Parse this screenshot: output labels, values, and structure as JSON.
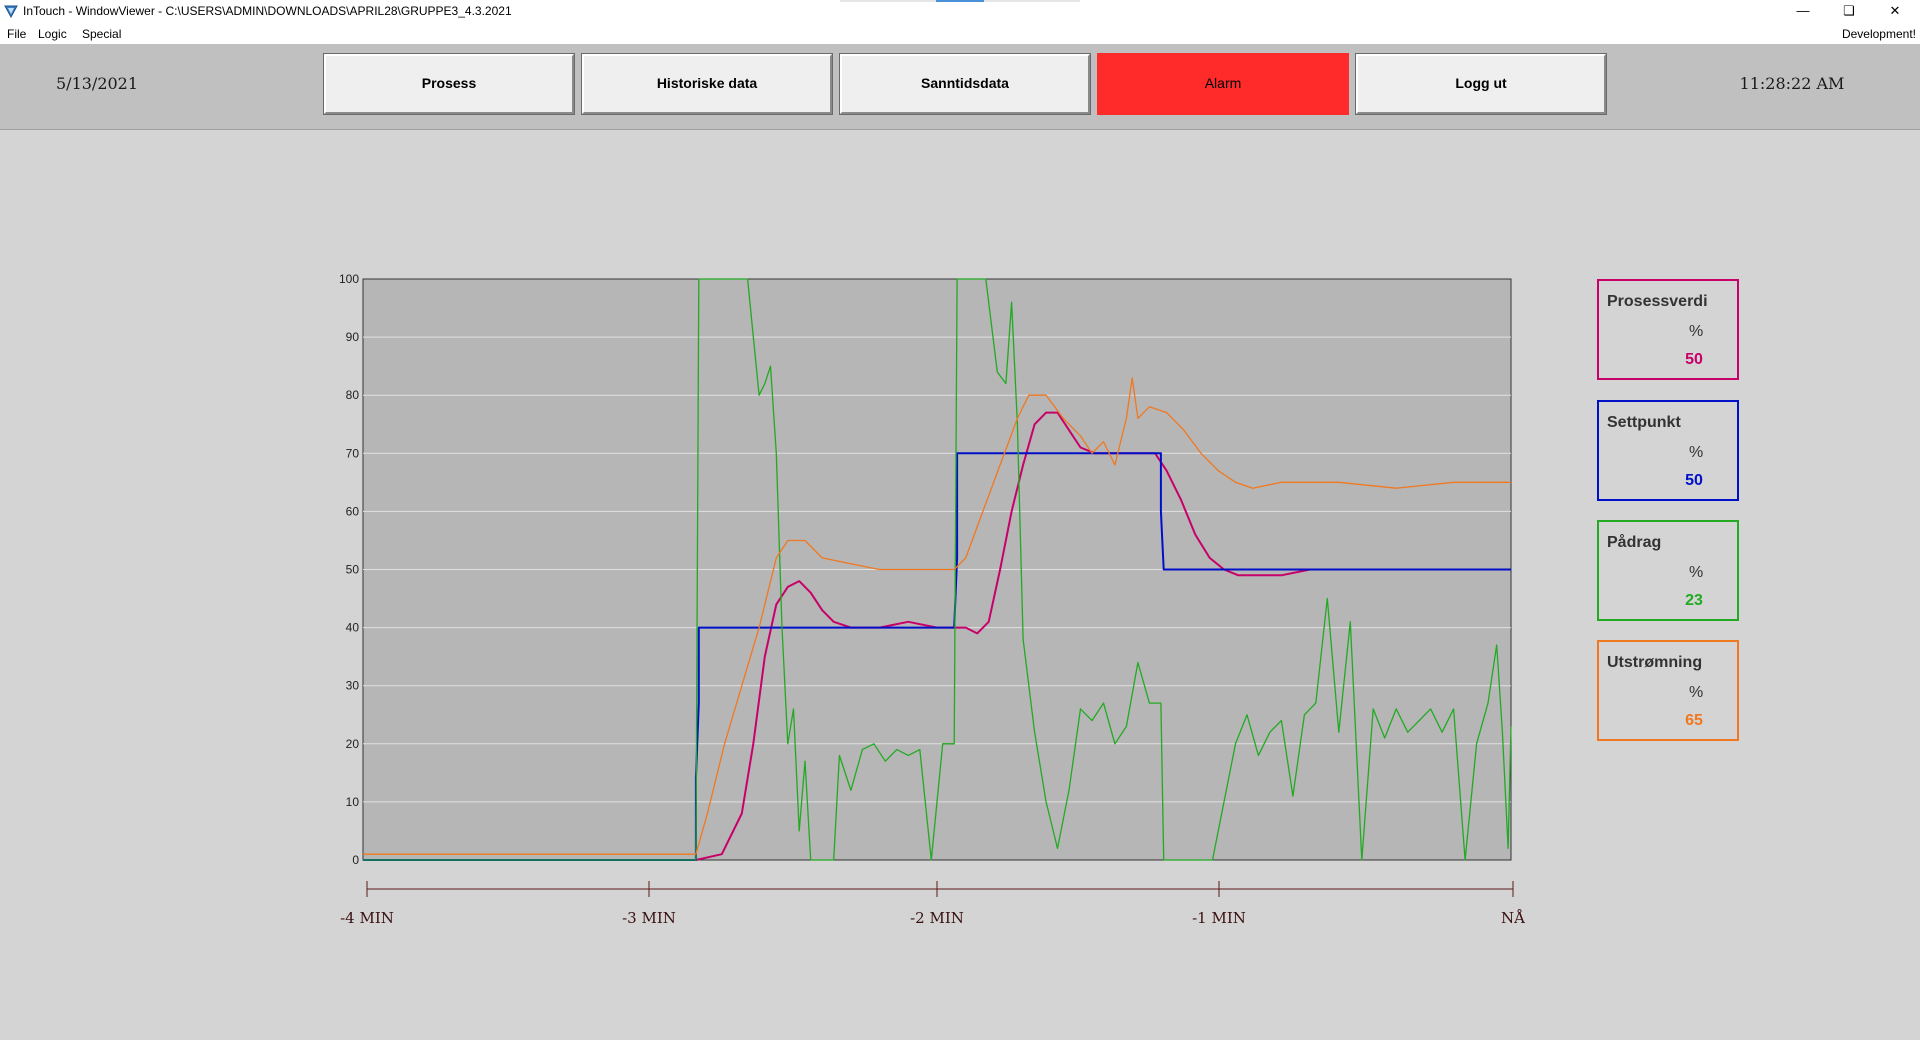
{
  "window": {
    "title": "InTouch - WindowViewer - C:\\USERS\\ADMIN\\DOWNLOADS\\APRIL28\\GRUPPE3_4.3.2021",
    "menu": [
      "File",
      "Logic",
      "Special"
    ],
    "mode": "Development!"
  },
  "header": {
    "date": "5/13/2021",
    "time": "11:28:22 AM",
    "buttons": [
      "Prosess",
      "Historiske data",
      "Sanntidsdata",
      "Alarm",
      "Logg ut"
    ]
  },
  "colors": {
    "process": "#c8006a",
    "setpoint": "#0010c8",
    "output": "#22aa22",
    "outflow": "#f07820",
    "alarm": "#ff2a2a",
    "plot_bg": "#b6b6b6",
    "axis_line": "#5a1a1a"
  },
  "values": [
    {
      "label": "Prosessverdi",
      "unit": "%",
      "value": "50",
      "color": "#c8006a"
    },
    {
      "label": "Settpunkt",
      "unit": "%",
      "value": "50",
      "color": "#0010c8"
    },
    {
      "label": "Pådrag",
      "unit": "%",
      "value": "23",
      "color": "#22aa22"
    },
    {
      "label": "Utstrømning",
      "unit": "%",
      "value": "65",
      "color": "#f07820"
    }
  ],
  "chart_data": {
    "type": "line",
    "ylim": [
      0,
      100
    ],
    "xlim": [
      -4,
      0
    ],
    "yticks": [
      "0",
      "10",
      "20",
      "30",
      "40",
      "50",
      "60",
      "70",
      "80",
      "90",
      "100"
    ],
    "xticks": [
      "-4 MIN",
      "-3 MIN",
      "-2 MIN",
      "-1 MIN",
      "NÅ"
    ],
    "grid": true,
    "series": [
      {
        "name": "Prosessverdi",
        "color": "#c8006a",
        "points": [
          [
            -4.0,
            0
          ],
          [
            -2.84,
            0
          ],
          [
            -2.75,
            1
          ],
          [
            -2.68,
            8
          ],
          [
            -2.64,
            20
          ],
          [
            -2.6,
            35
          ],
          [
            -2.56,
            44
          ],
          [
            -2.52,
            47
          ],
          [
            -2.48,
            48
          ],
          [
            -2.44,
            46
          ],
          [
            -2.4,
            43
          ],
          [
            -2.36,
            41
          ],
          [
            -2.3,
            40
          ],
          [
            -2.2,
            40
          ],
          [
            -2.1,
            41
          ],
          [
            -2.0,
            40
          ],
          [
            -1.9,
            40
          ],
          [
            -1.86,
            39
          ],
          [
            -1.82,
            41
          ],
          [
            -1.78,
            50
          ],
          [
            -1.74,
            60
          ],
          [
            -1.7,
            68
          ],
          [
            -1.66,
            75
          ],
          [
            -1.62,
            77
          ],
          [
            -1.58,
            77
          ],
          [
            -1.54,
            74
          ],
          [
            -1.5,
            71
          ],
          [
            -1.45,
            70
          ],
          [
            -1.4,
            70
          ],
          [
            -1.3,
            70
          ],
          [
            -1.24,
            70
          ],
          [
            -1.2,
            67
          ],
          [
            -1.15,
            62
          ],
          [
            -1.1,
            56
          ],
          [
            -1.05,
            52
          ],
          [
            -1.0,
            50
          ],
          [
            -0.95,
            49
          ],
          [
            -0.9,
            49
          ],
          [
            -0.8,
            49
          ],
          [
            -0.7,
            50
          ],
          [
            -0.6,
            50
          ],
          [
            -0.5,
            50
          ],
          [
            -0.4,
            50
          ],
          [
            -0.3,
            50
          ],
          [
            -0.2,
            50
          ],
          [
            -0.1,
            50
          ],
          [
            0.0,
            50
          ]
        ]
      },
      {
        "name": "Settpunkt",
        "color": "#0010c8",
        "points": [
          [
            -4.0,
            0
          ],
          [
            -2.84,
            0
          ],
          [
            -2.84,
            14
          ],
          [
            -2.83,
            27
          ],
          [
            -2.83,
            40
          ],
          [
            -1.94,
            40
          ],
          [
            -1.93,
            52
          ],
          [
            -1.93,
            70
          ],
          [
            -1.22,
            70
          ],
          [
            -1.22,
            60
          ],
          [
            -1.21,
            50
          ],
          [
            0.0,
            50
          ]
        ]
      },
      {
        "name": "Pådrag",
        "color": "#22aa22",
        "points": [
          [
            -4.0,
            0
          ],
          [
            -2.84,
            0
          ],
          [
            -2.83,
            100
          ],
          [
            -2.66,
            100
          ],
          [
            -2.62,
            80
          ],
          [
            -2.6,
            82
          ],
          [
            -2.58,
            85
          ],
          [
            -2.56,
            70
          ],
          [
            -2.54,
            40
          ],
          [
            -2.52,
            20
          ],
          [
            -2.5,
            26
          ],
          [
            -2.48,
            5
          ],
          [
            -2.46,
            17
          ],
          [
            -2.44,
            0
          ],
          [
            -2.36,
            0
          ],
          [
            -2.34,
            18
          ],
          [
            -2.3,
            12
          ],
          [
            -2.26,
            19
          ],
          [
            -2.22,
            20
          ],
          [
            -2.18,
            17
          ],
          [
            -2.14,
            19
          ],
          [
            -2.1,
            18
          ],
          [
            -2.06,
            19
          ],
          [
            -2.02,
            0
          ],
          [
            -1.98,
            20
          ],
          [
            -1.94,
            20
          ],
          [
            -1.93,
            100
          ],
          [
            -1.83,
            100
          ],
          [
            -1.79,
            84
          ],
          [
            -1.76,
            82
          ],
          [
            -1.74,
            96
          ],
          [
            -1.72,
            75
          ],
          [
            -1.7,
            38
          ],
          [
            -1.66,
            22
          ],
          [
            -1.62,
            10
          ],
          [
            -1.58,
            2
          ],
          [
            -1.54,
            12
          ],
          [
            -1.5,
            26
          ],
          [
            -1.46,
            24
          ],
          [
            -1.42,
            27
          ],
          [
            -1.38,
            20
          ],
          [
            -1.34,
            23
          ],
          [
            -1.3,
            34
          ],
          [
            -1.26,
            27
          ],
          [
            -1.22,
            27
          ],
          [
            -1.21,
            0
          ],
          [
            -1.04,
            0
          ],
          [
            -1.0,
            10
          ],
          [
            -0.96,
            20
          ],
          [
            -0.92,
            25
          ],
          [
            -0.88,
            18
          ],
          [
            -0.84,
            22
          ],
          [
            -0.8,
            24
          ],
          [
            -0.76,
            11
          ],
          [
            -0.72,
            25
          ],
          [
            -0.68,
            27
          ],
          [
            -0.64,
            45
          ],
          [
            -0.6,
            22
          ],
          [
            -0.56,
            41
          ],
          [
            -0.52,
            0
          ],
          [
            -0.48,
            26
          ],
          [
            -0.44,
            21
          ],
          [
            -0.4,
            26
          ],
          [
            -0.36,
            22
          ],
          [
            -0.32,
            24
          ],
          [
            -0.28,
            26
          ],
          [
            -0.24,
            22
          ],
          [
            -0.2,
            26
          ],
          [
            -0.16,
            0
          ],
          [
            -0.12,
            20
          ],
          [
            -0.08,
            27
          ],
          [
            -0.05,
            37
          ],
          [
            -0.03,
            22
          ],
          [
            -0.01,
            2
          ],
          [
            0.0,
            23
          ]
        ]
      },
      {
        "name": "Utstrømning",
        "color": "#f07820",
        "points": [
          [
            -4.0,
            1
          ],
          [
            -2.84,
            1
          ],
          [
            -2.8,
            8
          ],
          [
            -2.74,
            20
          ],
          [
            -2.68,
            30
          ],
          [
            -2.62,
            40
          ],
          [
            -2.56,
            52
          ],
          [
            -2.52,
            55
          ],
          [
            -2.46,
            55
          ],
          [
            -2.4,
            52
          ],
          [
            -2.3,
            51
          ],
          [
            -2.2,
            50
          ],
          [
            -2.1,
            50
          ],
          [
            -2.0,
            50
          ],
          [
            -1.94,
            50
          ],
          [
            -1.9,
            52
          ],
          [
            -1.84,
            60
          ],
          [
            -1.78,
            68
          ],
          [
            -1.72,
            76
          ],
          [
            -1.68,
            80
          ],
          [
            -1.62,
            80
          ],
          [
            -1.56,
            76
          ],
          [
            -1.5,
            73
          ],
          [
            -1.46,
            70
          ],
          [
            -1.42,
            72
          ],
          [
            -1.38,
            68
          ],
          [
            -1.34,
            76
          ],
          [
            -1.32,
            83
          ],
          [
            -1.3,
            76
          ],
          [
            -1.26,
            78
          ],
          [
            -1.2,
            77
          ],
          [
            -1.14,
            74
          ],
          [
            -1.08,
            70
          ],
          [
            -1.02,
            67
          ],
          [
            -0.96,
            65
          ],
          [
            -0.9,
            64
          ],
          [
            -0.8,
            65
          ],
          [
            -0.6,
            65
          ],
          [
            -0.4,
            64
          ],
          [
            -0.2,
            65
          ],
          [
            0.0,
            65
          ]
        ]
      }
    ]
  }
}
